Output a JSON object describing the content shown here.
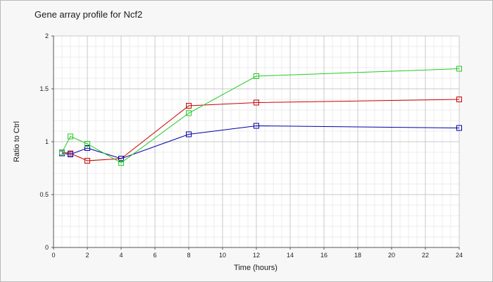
{
  "chart_data": {
    "type": "line",
    "title": "Gene array profile for Ncf2",
    "xlabel": "Time (hours)",
    "ylabel": "Ratio to Ctrl",
    "xlim": [
      0,
      24
    ],
    "ylim": [
      0,
      2
    ],
    "xticks": [
      "0",
      "2",
      "4",
      "6",
      "8",
      "10",
      "12",
      "14",
      "16",
      "18",
      "20",
      "22",
      "24"
    ],
    "yticks": [
      "0",
      "0.5",
      "1",
      "1.5",
      "2"
    ],
    "grid": true,
    "legend": "none",
    "x": [
      0.5,
      1,
      2,
      4,
      8,
      12,
      24
    ],
    "series": [
      {
        "color": "#cc0000",
        "values": [
          0.9,
          0.89,
          0.82,
          0.84,
          1.34,
          1.37,
          1.4
        ]
      },
      {
        "color": "#0000aa",
        "values": [
          0.89,
          0.88,
          0.94,
          0.84,
          1.07,
          1.15,
          1.13
        ]
      },
      {
        "color": "#22cc22",
        "values": [
          0.9,
          1.05,
          0.98,
          0.8,
          1.27,
          1.62,
          1.69
        ]
      }
    ]
  }
}
